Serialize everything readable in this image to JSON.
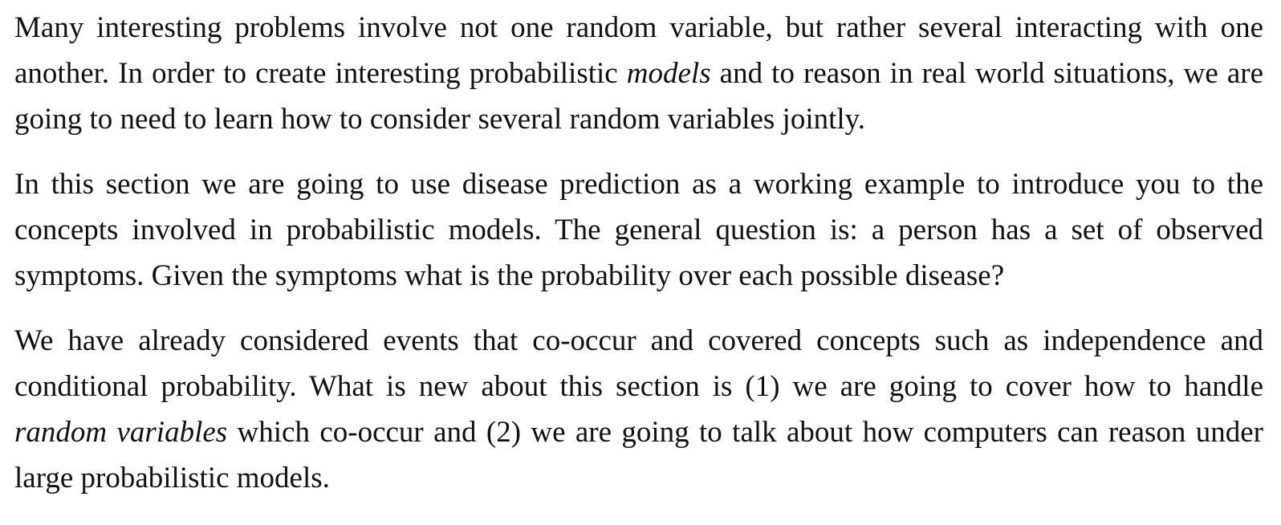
{
  "paragraphs": [
    {
      "before": "Many interesting problems involve not one random variable, but rather several interacting with one another. In order to create interesting probabilistic ",
      "emphasis": "models",
      "after": " and to reason in real world situations, we are going to need to learn how to consider several random variables jointly."
    },
    {
      "text": "In this section we are going to use disease prediction as a working example to introduce you to the concepts involved in probabilistic models. The general question is: a person has a set of observed symptoms. Given the symptoms what is the probability over each possible disease?"
    },
    {
      "before": "We have already considered events that co-occur and covered concepts such as independence and conditional probability. What is new about this section is (1) we are going to cover how to handle ",
      "emphasis": "random variables",
      "after": " which co-occur and (2) we are going to talk about how computers can reason under large probabilistic models."
    }
  ]
}
